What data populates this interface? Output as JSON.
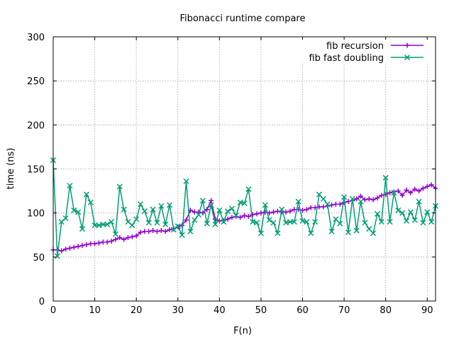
{
  "chart_data": {
    "type": "line",
    "title": "Fibonacci runtime compare",
    "xlabel": "F(n)",
    "ylabel": "time (ns)",
    "xlim": [
      0,
      92
    ],
    "ylim": [
      0,
      300
    ],
    "xticks": [
      0,
      10,
      20,
      30,
      40,
      50,
      60,
      70,
      80,
      90
    ],
    "yticks": [
      0,
      50,
      100,
      150,
      200,
      250,
      300
    ],
    "grid": true,
    "legend_position": "top-right",
    "x": [
      0,
      1,
      2,
      3,
      4,
      5,
      6,
      7,
      8,
      9,
      10,
      11,
      12,
      13,
      14,
      15,
      16,
      17,
      18,
      19,
      20,
      21,
      22,
      23,
      24,
      25,
      26,
      27,
      28,
      29,
      30,
      31,
      32,
      33,
      34,
      35,
      36,
      37,
      38,
      39,
      40,
      41,
      42,
      43,
      44,
      45,
      46,
      47,
      48,
      49,
      50,
      51,
      52,
      53,
      54,
      55,
      56,
      57,
      58,
      59,
      60,
      61,
      62,
      63,
      64,
      65,
      66,
      67,
      68,
      69,
      70,
      71,
      72,
      73,
      74,
      75,
      76,
      77,
      78,
      79,
      80,
      81,
      82,
      83,
      84,
      85,
      86,
      87,
      88,
      89,
      90,
      91,
      92
    ],
    "series": [
      {
        "name": "fib recursion",
        "color": "#9400d3",
        "marker": "plus",
        "values": [
          58,
          58,
          57,
          59,
          60,
          61,
          62,
          63,
          64,
          65,
          65,
          66,
          67,
          67,
          68,
          70,
          72,
          70,
          72,
          73,
          74,
          78,
          79,
          79,
          80,
          79,
          80,
          79,
          81,
          82,
          84,
          86,
          92,
          103,
          101,
          101,
          100,
          104,
          114,
          93,
          91,
          91,
          93,
          95,
          96,
          95,
          97,
          96,
          98,
          99,
          100,
          101,
          100,
          101,
          102,
          101,
          101,
          102,
          104,
          104,
          103,
          104,
          106,
          106,
          107,
          107,
          108,
          109,
          110,
          110,
          112,
          113,
          114,
          116,
          119,
          115,
          116,
          115,
          117,
          120,
          121,
          123,
          124,
          125,
          120,
          126,
          123,
          127,
          125,
          128,
          130,
          132,
          128
        ]
      },
      {
        "name": "fib fast doubling",
        "color": "#009e73",
        "marker": "x",
        "values": [
          160,
          51,
          90,
          94,
          131,
          103,
          101,
          82,
          121,
          112,
          86,
          86,
          87,
          87,
          90,
          76,
          130,
          104,
          90,
          86,
          93,
          110,
          102,
          89,
          104,
          89,
          108,
          87,
          109,
          81,
          85,
          75,
          136,
          79,
          92,
          98,
          114,
          88,
          109,
          87,
          103,
          90,
          102,
          105,
          97,
          112,
          111,
          127,
          90,
          89,
          77,
          109,
          92,
          89,
          77,
          104,
          89,
          90,
          90,
          113,
          91,
          90,
          77,
          90,
          121,
          116,
          110,
          79,
          93,
          88,
          118,
          78,
          116,
          80,
          113,
          89,
          82,
          77,
          99,
          90,
          140,
          90,
          123,
          103,
          100,
          91,
          101,
          92,
          113,
          89,
          101,
          90,
          108
        ]
      }
    ]
  }
}
